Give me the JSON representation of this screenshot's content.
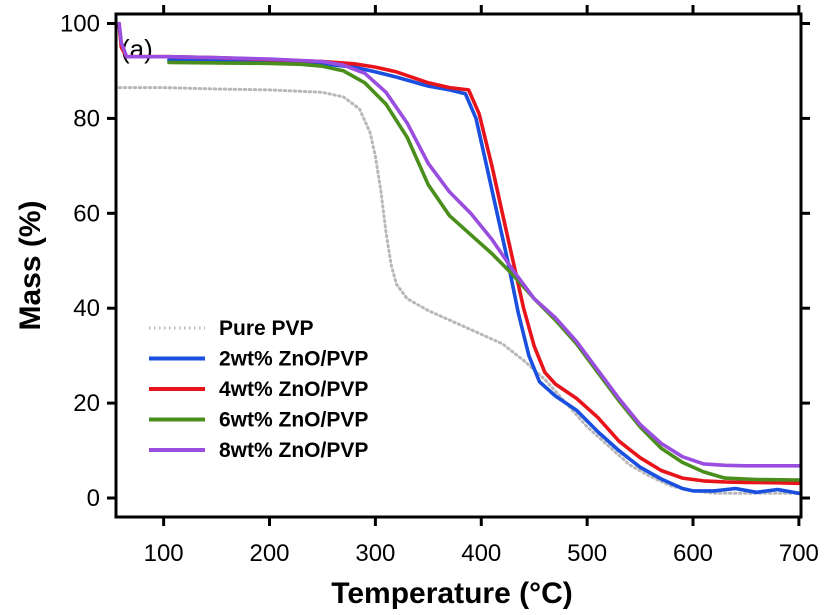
{
  "chart_data": {
    "type": "line",
    "panel_label": "(a)",
    "xlabel": "Temperature (°C)",
    "ylabel": "Mass (%)",
    "xlim": [
      55,
      702
    ],
    "ylim": [
      -4,
      102
    ],
    "xticks": [
      100,
      200,
      300,
      400,
      500,
      600,
      700
    ],
    "yticks": [
      0,
      20,
      40,
      60,
      80,
      100
    ],
    "grid": false,
    "legend_position": "bottom-left",
    "series": [
      {
        "name": "Pure PVP",
        "color": "#b8b8b8",
        "style": "dotted",
        "x": [
          58,
          100,
          150,
          200,
          250,
          270,
          285,
          295,
          300,
          305,
          310,
          315,
          320,
          330,
          350,
          380,
          400,
          420,
          440,
          460,
          480,
          500,
          520,
          540,
          560,
          580,
          600,
          620,
          640,
          660,
          680,
          700
        ],
        "y": [
          86.5,
          86.5,
          86.2,
          86.0,
          85.5,
          84.5,
          82.0,
          77.0,
          72.0,
          65.0,
          56.0,
          49.0,
          45.0,
          42.0,
          39.5,
          36.5,
          34.5,
          32.5,
          29.0,
          25.0,
          20.0,
          15.0,
          11.0,
          7.0,
          4.5,
          2.5,
          1.5,
          1.0,
          1.0,
          1.0,
          1.0,
          1.0
        ]
      },
      {
        "name": "2wt% ZnO/PVP",
        "color": "#1a4fe0",
        "style": "solid",
        "x": [
          105,
          150,
          200,
          250,
          280,
          300,
          320,
          350,
          370,
          385,
          395,
          405,
          415,
          425,
          435,
          445,
          455,
          470,
          490,
          510,
          530,
          550,
          570,
          590,
          600,
          620,
          640,
          660,
          680,
          700
        ],
        "y": [
          92.3,
          92.2,
          92.0,
          91.5,
          90.8,
          89.8,
          88.7,
          86.8,
          86.0,
          85.2,
          80.0,
          70.0,
          60.0,
          50.0,
          39.0,
          30.0,
          24.5,
          21.5,
          18.5,
          14.0,
          10.0,
          6.5,
          4.0,
          2.0,
          1.5,
          1.5,
          2.0,
          1.2,
          1.8,
          1.0
        ]
      },
      {
        "name": "4wt% ZnO/PVP",
        "color": "#e8141c",
        "style": "solid",
        "x": [
          58,
          60,
          65,
          105,
          150,
          200,
          250,
          280,
          300,
          320,
          350,
          370,
          388,
          398,
          410,
          420,
          430,
          440,
          450,
          460,
          470,
          490,
          510,
          530,
          550,
          570,
          590,
          610,
          630,
          650,
          680,
          700
        ],
        "y": [
          99.5,
          95.0,
          93.0,
          93.0,
          92.8,
          92.4,
          92.0,
          91.5,
          90.8,
          89.8,
          87.5,
          86.5,
          86.0,
          81.0,
          70.0,
          60.0,
          50.0,
          40.0,
          32.0,
          26.5,
          24.0,
          21.0,
          17.0,
          12.0,
          8.5,
          5.8,
          4.2,
          3.6,
          3.4,
          3.3,
          3.2,
          3.1
        ]
      },
      {
        "name": "6wt% ZnO/PVP",
        "color": "#4a8e1c",
        "style": "solid",
        "x": [
          105,
          150,
          200,
          230,
          250,
          270,
          290,
          310,
          330,
          350,
          370,
          390,
          410,
          430,
          450,
          470,
          490,
          510,
          530,
          550,
          570,
          590,
          610,
          630,
          660,
          700
        ],
        "y": [
          91.8,
          91.7,
          91.6,
          91.4,
          91.0,
          90.0,
          87.5,
          83.0,
          76.0,
          66.0,
          59.5,
          55.5,
          51.5,
          47.0,
          42.0,
          37.5,
          32.5,
          26.5,
          20.5,
          15.0,
          10.5,
          7.5,
          5.5,
          4.2,
          3.9,
          3.8
        ]
      },
      {
        "name": "8wt% ZnO/PVP",
        "color": "#9a4ee0",
        "style": "solid",
        "x": [
          58,
          60,
          65,
          105,
          150,
          200,
          250,
          270,
          290,
          310,
          330,
          350,
          370,
          390,
          410,
          430,
          450,
          470,
          490,
          510,
          530,
          550,
          570,
          590,
          610,
          630,
          650,
          700
        ],
        "y": [
          100.0,
          96.0,
          93.0,
          93.0,
          92.8,
          92.5,
          92.0,
          91.2,
          89.5,
          85.5,
          79.0,
          70.5,
          64.5,
          60.0,
          54.5,
          48.0,
          42.0,
          38.0,
          33.0,
          27.0,
          21.0,
          15.5,
          11.5,
          8.7,
          7.2,
          6.9,
          6.8,
          6.8
        ]
      }
    ]
  }
}
